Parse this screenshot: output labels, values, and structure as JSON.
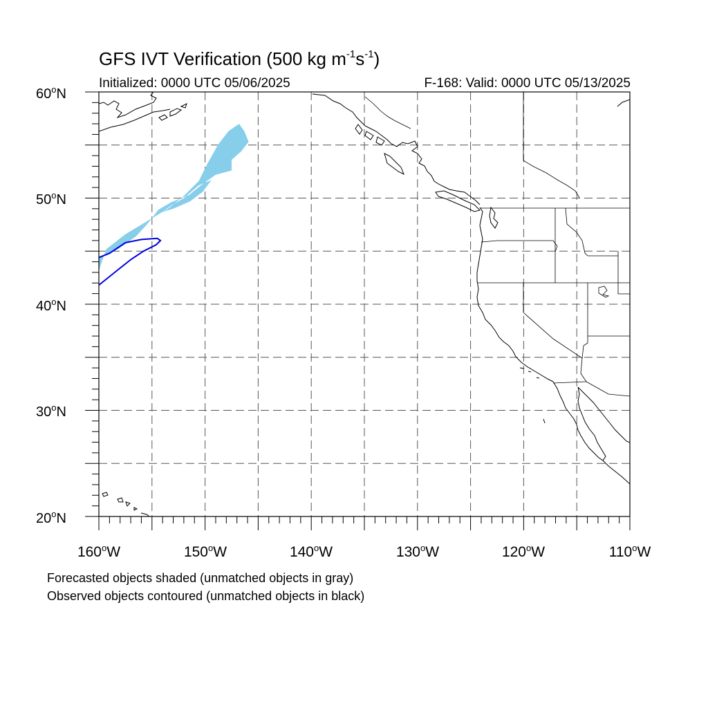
{
  "title": {
    "main": "GFS IVT Verification (500 kg m",
    "exp1": "-1",
    "mid": "s",
    "exp2": "-1",
    "end": ")"
  },
  "subtitle": {
    "initialized": "Initialized: 0000 UTC 05/06/2025",
    "valid": "F-168: Valid: 0000 UTC 05/13/2025"
  },
  "map_extent": {
    "lon": [
      -160,
      -110
    ],
    "lat": [
      20,
      60
    ]
  },
  "lat_labels": [
    {
      "value": "60",
      "suffix": "N"
    },
    {
      "value": "50",
      "suffix": "N"
    },
    {
      "value": "40",
      "suffix": "N"
    },
    {
      "value": "30",
      "suffix": "N"
    },
    {
      "value": "20",
      "suffix": "N"
    }
  ],
  "lon_labels": [
    {
      "value": "160",
      "suffix": "W"
    },
    {
      "value": "150",
      "suffix": "W"
    },
    {
      "value": "140",
      "suffix": "W"
    },
    {
      "value": "130",
      "suffix": "W"
    },
    {
      "value": "120",
      "suffix": "W"
    },
    {
      "value": "110",
      "suffix": "W"
    }
  ],
  "colors": {
    "forecast_fill": "#87ceeb",
    "observed_contour": "#0000dd",
    "grid": "#555555",
    "coast": "#000000"
  },
  "legend": {
    "line1": "Forecasted objects shaded (unmatched objects in gray)",
    "line2": "Observed objects contoured (unmatched objects in black)"
  },
  "forecast_object": {
    "outline_lonlat": [
      [
        -160,
        43.2
      ],
      [
        -159.3,
        45.2
      ],
      [
        -157.5,
        46.6
      ],
      [
        -155.5,
        47.8
      ],
      [
        -153.5,
        49.0
      ],
      [
        -152.0,
        50.2
      ],
      [
        -150.6,
        51.6
      ],
      [
        -149.8,
        53.2
      ],
      [
        -148.8,
        55.0
      ],
      [
        -147.8,
        56.3
      ],
      [
        -146.8,
        57.0
      ],
      [
        -146.3,
        56.3
      ],
      [
        -145.9,
        55.3
      ],
      [
        -146.6,
        54.4
      ],
      [
        -147.5,
        53.6
      ],
      [
        -147.5,
        52.6
      ],
      [
        -149.0,
        52.2
      ],
      [
        -150.4,
        51.2
      ],
      [
        -151.5,
        50.3
      ],
      [
        -153.2,
        49.6
      ],
      [
        -154.4,
        48.9
      ],
      [
        -155.4,
        47.6
      ],
      [
        -156.5,
        46.4
      ],
      [
        -158.2,
        45.2
      ],
      [
        -160,
        44.4
      ]
    ],
    "hole_lonlat": [
      [
        -152.0,
        50.0
      ],
      [
        -150.6,
        51.2
      ],
      [
        -149.4,
        51.7
      ],
      [
        -150.2,
        50.6
      ],
      [
        -151.4,
        49.7
      ],
      [
        -153.0,
        49.0
      ],
      [
        -154.0,
        48.7
      ],
      [
        -153.2,
        49.3
      ]
    ]
  },
  "observed_object": {
    "outline_lonlat": [
      [
        -160,
        44.4
      ],
      [
        -159.0,
        44.8
      ],
      [
        -157.5,
        45.8
      ],
      [
        -156.0,
        46.1
      ],
      [
        -154.5,
        46.2
      ],
      [
        -154.2,
        46.0
      ],
      [
        -154.6,
        45.6
      ],
      [
        -155.8,
        45.0
      ],
      [
        -157.0,
        44.2
      ],
      [
        -158.5,
        43.0
      ],
      [
        -160,
        41.8
      ]
    ]
  }
}
